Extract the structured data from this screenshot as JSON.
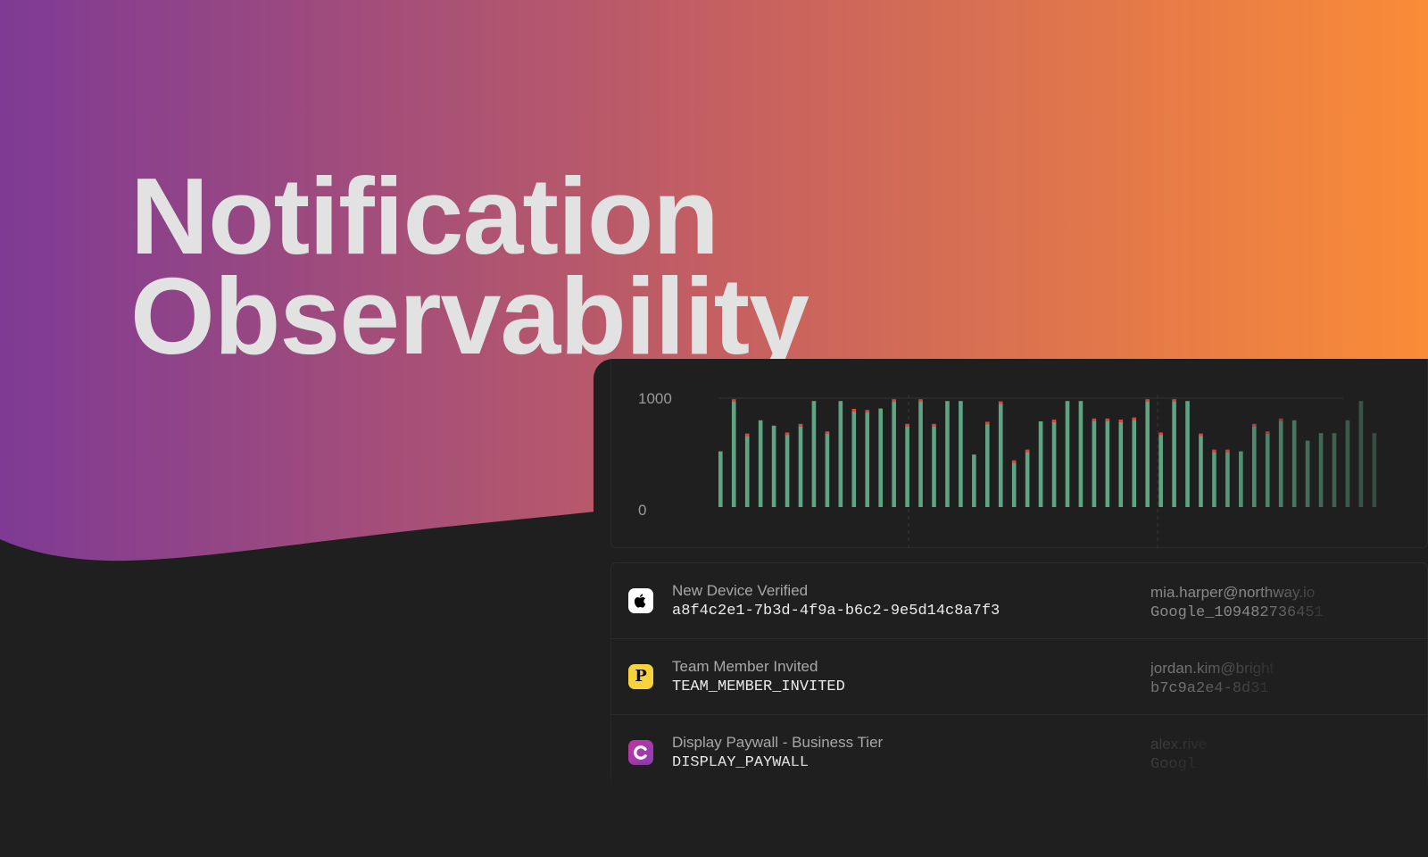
{
  "hero": {
    "line1": "Notification",
    "line2": "Observability",
    "gradient": [
      "#7e3a94",
      "#c45f62",
      "#fa8c36"
    ]
  },
  "chart_data": {
    "type": "bar",
    "ylim": [
      0,
      1000
    ],
    "yticks": [
      "1000",
      "0"
    ],
    "series": [
      {
        "values": [
          520,
          990,
          670,
          810,
          760,
          680,
          760,
          990,
          690,
          990,
          900,
          890,
          920,
          990,
          760,
          990,
          760,
          990,
          990,
          490,
          780,
          970,
          420,
          520,
          800,
          800,
          990,
          990,
          810,
          810,
          800,
          820,
          990,
          680,
          990,
          990,
          670,
          520,
          520,
          520,
          760,
          690,
          810,
          810,
          620,
          690,
          690,
          810,
          990,
          690
        ]
      },
      {
        "values": [
          0,
          20,
          25,
          0,
          0,
          25,
          20,
          0,
          25,
          0,
          20,
          30,
          0,
          20,
          20,
          25,
          25,
          0,
          0,
          0,
          20,
          20,
          20,
          25,
          0,
          20,
          0,
          0,
          20,
          20,
          25,
          25,
          20,
          25,
          20,
          0,
          20,
          25,
          25,
          0,
          20,
          25,
          20,
          0,
          0,
          0,
          0,
          0,
          0,
          0
        ]
      }
    ],
    "colors": {
      "ok": "#5fa584",
      "error": "#d9463c",
      "gridline": "#3a3a3a"
    }
  },
  "events": [
    {
      "icon": "apple-icon",
      "title": "New Device Verified",
      "code": "a8f4c2e1-7b3d-4f9a-b6c2-9e5d14c8a7f3",
      "meta1": "mia.harper@northway.io",
      "meta2": "Google_109482736451"
    },
    {
      "icon": "p-icon",
      "title": "Team Member Invited",
      "code": "TEAM_MEMBER_INVITED",
      "meta1": "jordan.kim@bright",
      "meta2": "b7c9a2e4-8d31"
    },
    {
      "icon": "c-icon",
      "title": "Display Paywall - Business Tier",
      "code": "DISPLAY_PAYWALL",
      "meta1": "alex.rive",
      "meta2": "Googl"
    }
  ]
}
